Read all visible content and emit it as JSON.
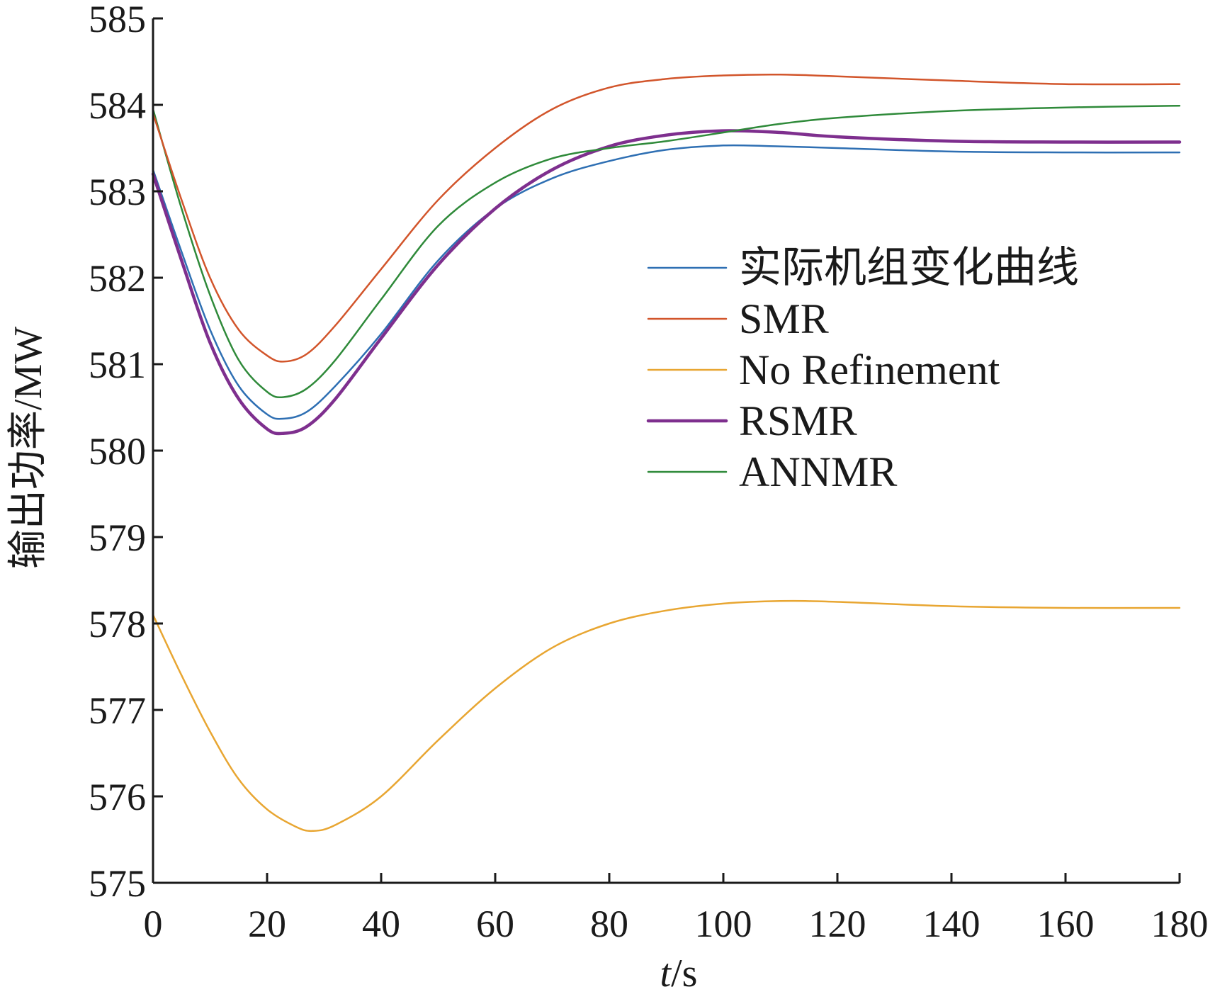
{
  "chart_data": {
    "type": "line",
    "xlabel_italic": "t",
    "xlabel_rest": "/s",
    "ylabel": "输出功率/MW",
    "xlim": [
      0,
      180
    ],
    "ylim": [
      575,
      585
    ],
    "xticks": [
      0,
      20,
      40,
      60,
      80,
      100,
      120,
      140,
      160,
      180
    ],
    "yticks": [
      575,
      576,
      577,
      578,
      579,
      580,
      581,
      582,
      583,
      584,
      585
    ],
    "grid": false,
    "legend_position": "right",
    "series": [
      {
        "name": "实际机组变化曲线",
        "color": "#2e6fb3",
        "width": 2.5,
        "points": [
          [
            0,
            583.25
          ],
          [
            5,
            582.3
          ],
          [
            10,
            581.4
          ],
          [
            15,
            580.75
          ],
          [
            20,
            580.42
          ],
          [
            23,
            580.37
          ],
          [
            27,
            580.45
          ],
          [
            32,
            580.75
          ],
          [
            40,
            581.35
          ],
          [
            50,
            582.2
          ],
          [
            60,
            582.8
          ],
          [
            70,
            583.15
          ],
          [
            80,
            583.35
          ],
          [
            90,
            583.48
          ],
          [
            100,
            583.53
          ],
          [
            110,
            583.52
          ],
          [
            120,
            583.5
          ],
          [
            140,
            583.46
          ],
          [
            160,
            583.45
          ],
          [
            180,
            583.45
          ]
        ]
      },
      {
        "name": "SMR",
        "color": "#d2552b",
        "width": 2.5,
        "points": [
          [
            0,
            583.9
          ],
          [
            5,
            582.9
          ],
          [
            10,
            582.0
          ],
          [
            15,
            581.4
          ],
          [
            20,
            581.1
          ],
          [
            23,
            581.03
          ],
          [
            27,
            581.12
          ],
          [
            32,
            581.45
          ],
          [
            40,
            582.1
          ],
          [
            50,
            582.9
          ],
          [
            60,
            583.5
          ],
          [
            70,
            583.95
          ],
          [
            80,
            584.2
          ],
          [
            90,
            584.3
          ],
          [
            100,
            584.34
          ],
          [
            110,
            584.35
          ],
          [
            120,
            584.33
          ],
          [
            140,
            584.28
          ],
          [
            160,
            584.24
          ],
          [
            180,
            584.24
          ]
        ]
      },
      {
        "name": "No Refinement",
        "color": "#e8a632",
        "width": 2.5,
        "points": [
          [
            0,
            578.1
          ],
          [
            5,
            577.4
          ],
          [
            10,
            576.75
          ],
          [
            15,
            576.2
          ],
          [
            20,
            575.85
          ],
          [
            25,
            575.65
          ],
          [
            28,
            575.6
          ],
          [
            32,
            575.67
          ],
          [
            40,
            576.0
          ],
          [
            50,
            576.65
          ],
          [
            60,
            577.25
          ],
          [
            70,
            577.72
          ],
          [
            80,
            578.0
          ],
          [
            90,
            578.15
          ],
          [
            100,
            578.23
          ],
          [
            110,
            578.26
          ],
          [
            120,
            578.25
          ],
          [
            140,
            578.2
          ],
          [
            160,
            578.18
          ],
          [
            180,
            578.18
          ]
        ]
      },
      {
        "name": "RSMR",
        "color": "#7e2f8e",
        "width": 4.5,
        "points": [
          [
            0,
            583.2
          ],
          [
            5,
            582.2
          ],
          [
            10,
            581.25
          ],
          [
            15,
            580.6
          ],
          [
            20,
            580.25
          ],
          [
            23,
            580.2
          ],
          [
            27,
            580.28
          ],
          [
            32,
            580.6
          ],
          [
            40,
            581.3
          ],
          [
            50,
            582.15
          ],
          [
            60,
            582.8
          ],
          [
            70,
            583.25
          ],
          [
            80,
            583.52
          ],
          [
            90,
            583.65
          ],
          [
            100,
            583.7
          ],
          [
            110,
            583.68
          ],
          [
            120,
            583.63
          ],
          [
            140,
            583.58
          ],
          [
            160,
            583.57
          ],
          [
            180,
            583.57
          ]
        ]
      },
      {
        "name": "ANNMR",
        "color": "#2f8a3a",
        "width": 2.5,
        "points": [
          [
            0,
            583.95
          ],
          [
            5,
            582.8
          ],
          [
            10,
            581.8
          ],
          [
            15,
            581.05
          ],
          [
            20,
            580.68
          ],
          [
            23,
            580.62
          ],
          [
            27,
            580.72
          ],
          [
            32,
            581.05
          ],
          [
            40,
            581.75
          ],
          [
            50,
            582.6
          ],
          [
            60,
            583.1
          ],
          [
            70,
            583.38
          ],
          [
            80,
            583.5
          ],
          [
            90,
            583.58
          ],
          [
            100,
            583.68
          ],
          [
            110,
            583.78
          ],
          [
            120,
            583.85
          ],
          [
            140,
            583.93
          ],
          [
            160,
            583.97
          ],
          [
            180,
            583.99
          ]
        ]
      }
    ]
  }
}
